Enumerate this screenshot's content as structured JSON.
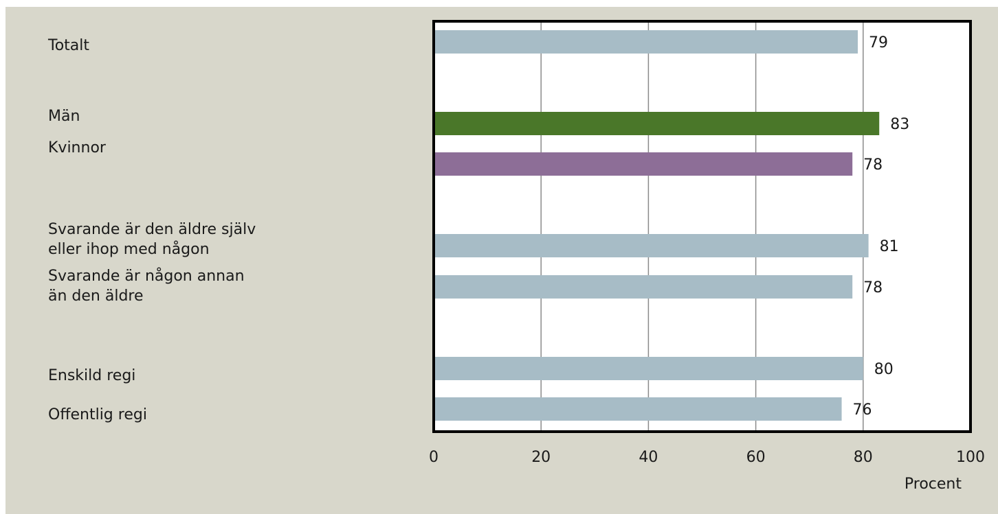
{
  "chart_data": {
    "type": "bar",
    "orientation": "horizontal",
    "categories": [
      "Totalt",
      "Män",
      "Kvinnor",
      "Svarande är den äldre själv\neller ihop med någon",
      "Svarande är någon annan\nän den äldre",
      "Enskild regi",
      "Offentlig regi"
    ],
    "values": [
      79,
      83,
      78,
      81,
      78,
      80,
      76
    ],
    "colors": [
      "#a7bcc6",
      "#4a7729",
      "#8d6e97",
      "#a7bcc6",
      "#a7bcc6",
      "#a7bcc6",
      "#a7bcc6"
    ],
    "xlim": [
      0,
      100
    ],
    "xticks": [
      0,
      20,
      40,
      60,
      80,
      100
    ],
    "xlabel": "Procent",
    "grid": "vertical",
    "background": "#d8d7cb",
    "plot_background": "#ffffff"
  }
}
